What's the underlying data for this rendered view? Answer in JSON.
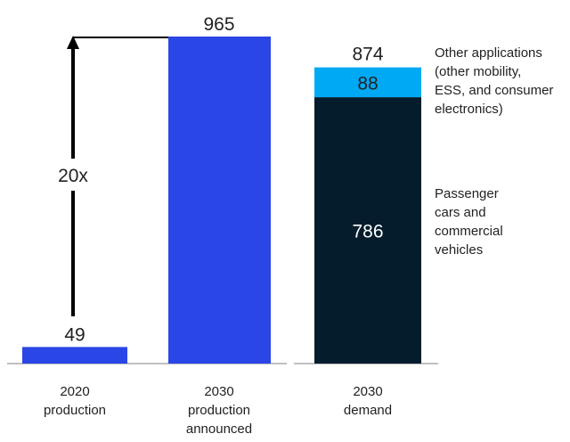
{
  "chart_data": {
    "type": "bar",
    "categories": [
      "2020 production",
      "2030 production announced",
      "2030 demand"
    ],
    "category_label_lines": [
      [
        "2020",
        "production"
      ],
      [
        "2030",
        "production",
        "announced"
      ],
      [
        "2030",
        "demand"
      ]
    ],
    "bars": [
      {
        "category": "2020 production",
        "segments": [
          {
            "value": 49,
            "color": "#2b46e6"
          }
        ],
        "total": 49
      },
      {
        "category": "2030 production announced",
        "segments": [
          {
            "value": 965,
            "color": "#2b46e6"
          }
        ],
        "total": 965
      },
      {
        "category": "2030 demand",
        "segments": [
          {
            "value": 786,
            "color": "#051c2c",
            "label": "Passenger cars and commercial vehicles"
          },
          {
            "value": 88,
            "color": "#00a9f4",
            "label": "Other applications (other mobility, ESS, and consumer electronics)"
          }
        ],
        "total": 874
      }
    ],
    "segment_labels": {
      "other": [
        "Other applications",
        "(other mobility,",
        "ESS, and consumer",
        "electronics)"
      ],
      "passenger": [
        "Passenger",
        "cars and",
        "commercial",
        "vehicles"
      ]
    },
    "growth_annotation": "20x",
    "ylim": [
      0,
      965
    ],
    "grid": false,
    "colors": {
      "production": "#2b46e6",
      "demand_main": "#051c2c",
      "demand_other": "#00a9f4",
      "axis": "#808080",
      "text": "#222222",
      "arrow": "#000000"
    }
  }
}
